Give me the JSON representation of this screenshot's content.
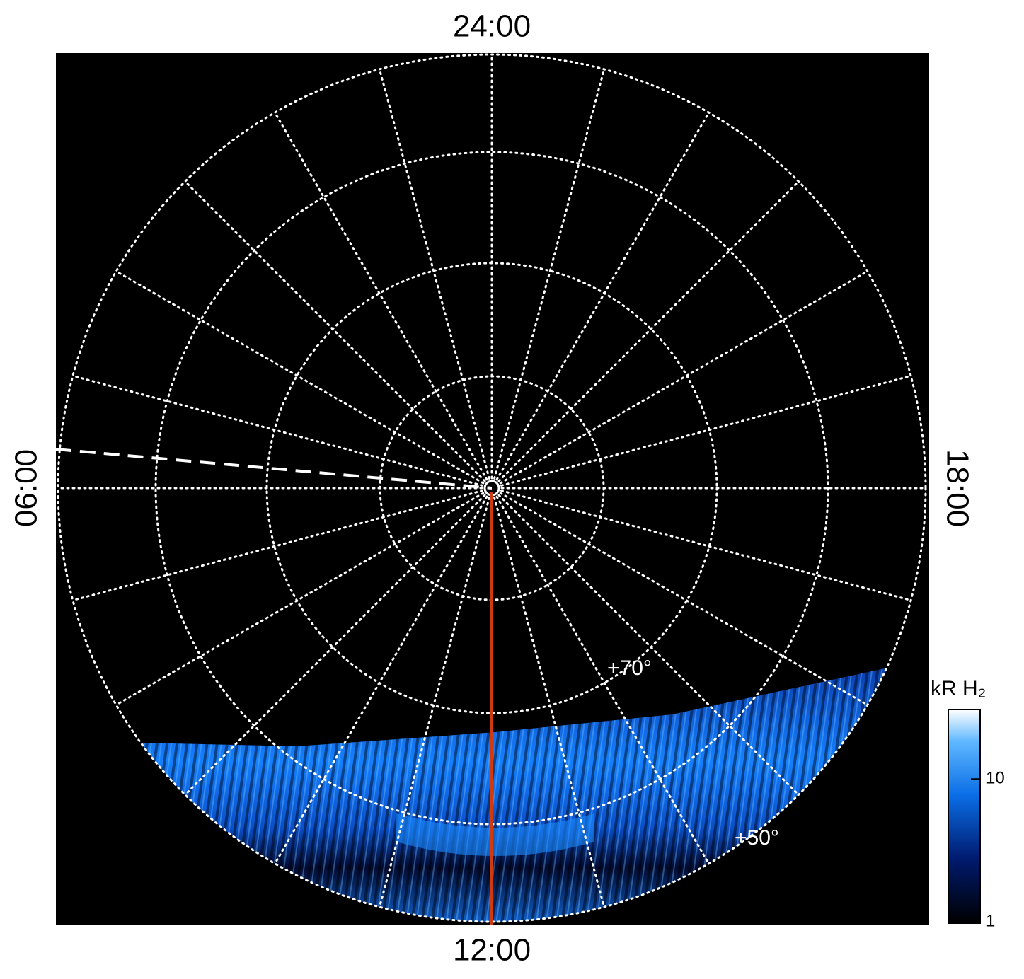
{
  "chart_data": {
    "type": "polar-map",
    "labels": {
      "top": "24:00",
      "bottom": "12:00",
      "left": "06:00",
      "right": "18:00"
    },
    "annotations": [
      "+70°",
      "+50°"
    ],
    "colorbar": {
      "title": "kR H₂",
      "ylim": [
        1,
        30
      ],
      "yticks": [
        1,
        10
      ],
      "log": true
    }
  }
}
